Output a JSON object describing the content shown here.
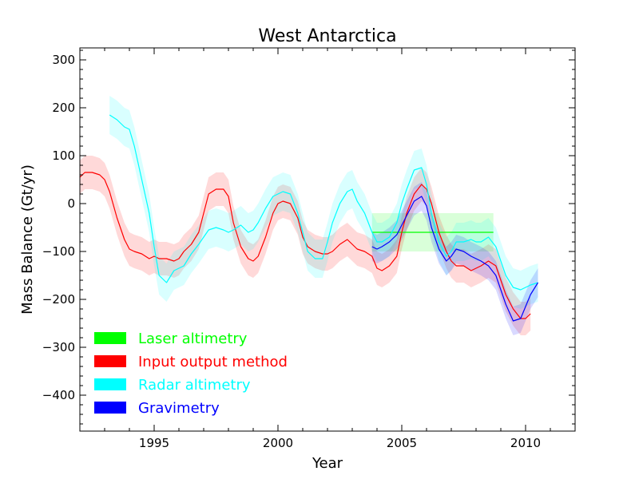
{
  "chart_data": {
    "type": "line",
    "title": "West Antarctica",
    "xlabel": "Year",
    "ylabel": "Mass Balance (Gt/yr)",
    "xlim": [
      1992,
      2012
    ],
    "ylim": [
      -475,
      325
    ],
    "xticks": [
      1995,
      2000,
      2005,
      2010
    ],
    "yticks": [
      -400,
      -300,
      -200,
      -100,
      0,
      100,
      200,
      300
    ],
    "xtick_labels": [
      "1995",
      "2000",
      "2005",
      "2010"
    ],
    "ytick_labels": [
      "−400",
      "−300",
      "−200",
      "−100",
      "0",
      "100",
      "200",
      "300"
    ],
    "grid": false,
    "legend_position": "lower-left",
    "legend_labels": [
      "Laser altimetry",
      "Input output method",
      "Radar altimetry",
      "Gravimetry"
    ],
    "series": [
      {
        "name": "Laser altimetry",
        "color": "#00ff00",
        "x": [
          2003.8,
          2008.7
        ],
        "y": [
          -60,
          -60
        ],
        "band_half_width": [
          40,
          40
        ]
      },
      {
        "name": "Input output method",
        "color": "#ff0000",
        "x": [
          1992.0,
          1992.2,
          1992.5,
          1992.8,
          1993.0,
          1993.2,
          1993.5,
          1993.8,
          1994.0,
          1994.2,
          1994.5,
          1994.8,
          1995.0,
          1995.2,
          1995.5,
          1995.8,
          1996.0,
          1996.2,
          1996.5,
          1996.8,
          1997.0,
          1997.2,
          1997.5,
          1997.8,
          1998.0,
          1998.2,
          1998.5,
          1998.8,
          1999.0,
          1999.2,
          1999.5,
          1999.8,
          2000.0,
          2000.2,
          2000.5,
          2000.8,
          2001.0,
          2001.2,
          2001.5,
          2001.8,
          2002.0,
          2002.2,
          2002.5,
          2002.8,
          2003.0,
          2003.2,
          2003.5,
          2003.8,
          2004.0,
          2004.2,
          2004.5,
          2004.8,
          2005.0,
          2005.2,
          2005.5,
          2005.8,
          2006.0,
          2006.2,
          2006.5,
          2006.8,
          2007.0,
          2007.2,
          2007.5,
          2007.8,
          2008.0,
          2008.2,
          2008.5,
          2008.8,
          2009.0,
          2009.2,
          2009.5,
          2009.8,
          2010.0,
          2010.2
        ],
        "y": [
          55,
          65,
          65,
          60,
          50,
          25,
          -30,
          -75,
          -95,
          -100,
          -105,
          -115,
          -110,
          -115,
          -115,
          -120,
          -115,
          -100,
          -85,
          -60,
          -20,
          20,
          30,
          30,
          15,
          -40,
          -90,
          -115,
          -120,
          -110,
          -70,
          -20,
          0,
          5,
          0,
          -30,
          -70,
          -90,
          -100,
          -105,
          -105,
          -100,
          -85,
          -75,
          -85,
          -95,
          -100,
          -110,
          -135,
          -140,
          -130,
          -110,
          -60,
          -20,
          20,
          40,
          30,
          0,
          -60,
          -100,
          -120,
          -130,
          -130,
          -140,
          -135,
          -130,
          -120,
          -130,
          -160,
          -190,
          -220,
          -240,
          -240,
          -230
        ],
        "band_half_width": 35
      },
      {
        "name": "Radar altimetry",
        "color": "#00ffff",
        "x": [
          1993.2,
          1993.5,
          1993.8,
          1994.0,
          1994.2,
          1994.5,
          1994.8,
          1995.0,
          1995.2,
          1995.5,
          1995.8,
          1996.0,
          1996.2,
          1996.5,
          1996.8,
          1997.0,
          1997.2,
          1997.5,
          1997.8,
          1998.0,
          1998.2,
          1998.5,
          1998.8,
          1999.0,
          1999.2,
          1999.5,
          1999.8,
          2000.0,
          2000.2,
          2000.5,
          2000.8,
          2001.0,
          2001.2,
          2001.5,
          2001.8,
          2002.0,
          2002.2,
          2002.5,
          2002.8,
          2003.0,
          2003.2,
          2003.5,
          2003.8,
          2004.0,
          2004.2,
          2004.5,
          2004.8,
          2005.0,
          2005.2,
          2005.5,
          2005.8,
          2006.0,
          2006.2,
          2006.5,
          2006.8,
          2007.0,
          2007.2,
          2007.5,
          2007.8,
          2008.0,
          2008.2,
          2008.5,
          2008.8,
          2009.0,
          2009.2,
          2009.5,
          2009.8,
          2010.0,
          2010.2,
          2010.5
        ],
        "y": [
          185,
          175,
          160,
          155,
          120,
          50,
          -20,
          -90,
          -150,
          -165,
          -140,
          -135,
          -130,
          -105,
          -85,
          -70,
          -55,
          -50,
          -55,
          -60,
          -55,
          -45,
          -60,
          -55,
          -40,
          -10,
          15,
          20,
          25,
          20,
          -20,
          -60,
          -100,
          -115,
          -115,
          -80,
          -40,
          0,
          25,
          30,
          5,
          -20,
          -60,
          -80,
          -80,
          -70,
          -40,
          0,
          30,
          70,
          75,
          40,
          -20,
          -80,
          -110,
          -100,
          -80,
          -80,
          -75,
          -80,
          -80,
          -70,
          -90,
          -120,
          -150,
          -175,
          -180,
          -175,
          -170,
          -165
        ],
        "band_half_width": 40
      },
      {
        "name": "Gravimetry",
        "color": "#0000ff",
        "x": [
          2003.8,
          2004.0,
          2004.2,
          2004.5,
          2004.8,
          2005.0,
          2005.2,
          2005.5,
          2005.8,
          2006.0,
          2006.2,
          2006.5,
          2006.8,
          2007.0,
          2007.2,
          2007.5,
          2007.8,
          2008.0,
          2008.2,
          2008.5,
          2008.8,
          2009.0,
          2009.2,
          2009.5,
          2009.8,
          2010.0,
          2010.2,
          2010.5
        ],
        "y": [
          -90,
          -95,
          -90,
          -80,
          -65,
          -45,
          -25,
          5,
          15,
          -5,
          -50,
          -95,
          -120,
          -110,
          -95,
          -100,
          -110,
          -115,
          -120,
          -130,
          -150,
          -180,
          -210,
          -245,
          -240,
          -215,
          -190,
          -165
        ],
        "band_half_width": 30
      }
    ]
  }
}
